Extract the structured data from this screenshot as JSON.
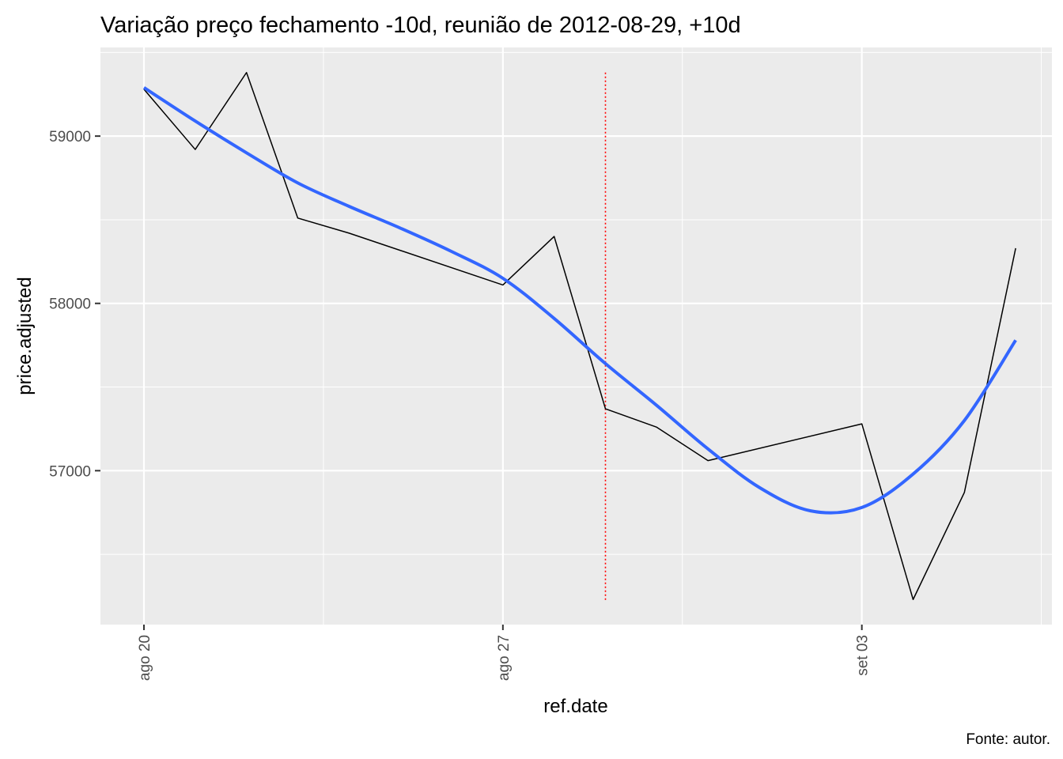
{
  "chart_data": {
    "type": "line",
    "title": "Variação preço fechamento -10d, reunião de 2012-08-29, +10d",
    "xlabel": "ref.date",
    "ylabel": "price.adjusted",
    "caption": "Fonte: autor.",
    "x_ticks": [
      {
        "date": "2012-08-20",
        "label": "ago 20"
      },
      {
        "date": "2012-08-27",
        "label": "ago 27"
      },
      {
        "date": "2012-09-03",
        "label": "set 03"
      }
    ],
    "y_ticks": [
      57000,
      58000,
      59000
    ],
    "xlim": [
      "2012-08-19",
      "2012-09-06"
    ],
    "ylim": [
      56080,
      59530
    ],
    "grid": true,
    "background": "#ebebeb",
    "series": [
      {
        "name": "",
        "color": "#000000",
        "x": [
          "2012-08-20",
          "2012-08-21",
          "2012-08-22",
          "2012-08-23",
          "2012-08-24",
          "2012-08-27",
          "2012-08-28",
          "2012-08-29",
          "2012-08-30",
          "2012-08-31",
          "2012-09-03",
          "2012-09-04",
          "2012-09-05",
          "2012-09-06"
        ],
        "y": [
          59280,
          58920,
          59380,
          58510,
          58420,
          58110,
          58400,
          57370,
          57260,
          57060,
          57280,
          56230,
          56870,
          58330
        ]
      },
      {
        "name": "",
        "color": "#3366ff",
        "smooth": true,
        "x": [
          "2012-08-20",
          "2012-08-21",
          "2012-08-22",
          "2012-08-23",
          "2012-08-24",
          "2012-08-25",
          "2012-08-26",
          "2012-08-27",
          "2012-08-28",
          "2012-08-29",
          "2012-08-30",
          "2012-08-31",
          "2012-09-01",
          "2012-09-02",
          "2012-09-03",
          "2012-09-04",
          "2012-09-05",
          "2012-09-06"
        ],
        "y": [
          59290,
          59090,
          58900,
          58720,
          58580,
          58450,
          58310,
          58150,
          57910,
          57640,
          57390,
          57130,
          56900,
          56760,
          56780,
          56980,
          57300,
          57780
        ]
      }
    ],
    "vline": {
      "date": "2012-08-29",
      "color": "#ff0000",
      "style": "dotted",
      "y_range": [
        56220,
        59380
      ]
    }
  }
}
